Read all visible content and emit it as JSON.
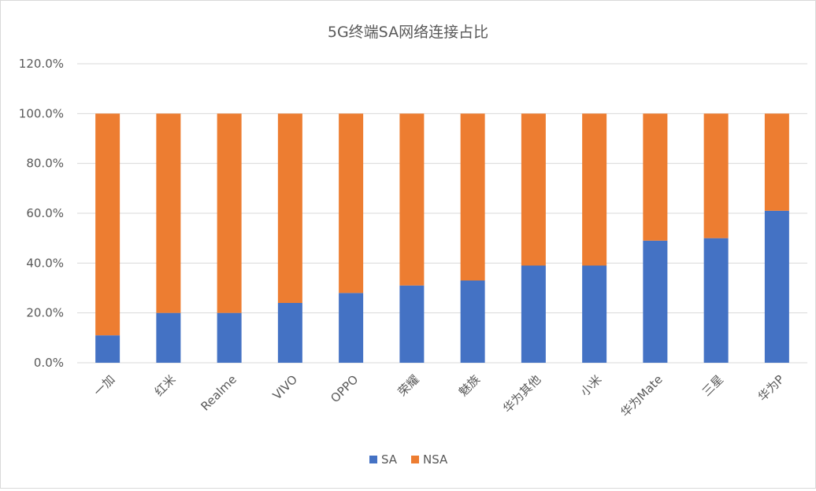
{
  "chart_data": {
    "type": "bar",
    "stacked": true,
    "title": "5G终端SA网络连接占比",
    "xlabel": "",
    "ylabel": "",
    "ylim": [
      0,
      120
    ],
    "yticks": [
      0,
      20,
      40,
      60,
      80,
      100,
      120
    ],
    "ytick_labels": [
      "0.0%",
      "20.0%",
      "40.0%",
      "60.0%",
      "80.0%",
      "100.0%",
      "120.0%"
    ],
    "grid": true,
    "legend_position": "bottom",
    "categories": [
      "一加",
      "红米",
      "Realme",
      "VIVO",
      "OPPO",
      "荣耀",
      "魅族",
      "华为其他",
      "小米",
      "华为Mate",
      "三星",
      "华为P"
    ],
    "series": [
      {
        "name": "SA",
        "color": "#4472c4",
        "values": [
          11,
          20,
          20,
          24,
          28,
          31,
          33,
          39,
          39,
          49,
          50,
          61
        ]
      },
      {
        "name": "NSA",
        "color": "#ed7d31",
        "values": [
          89,
          80,
          80,
          76,
          72,
          69,
          67,
          61,
          61,
          51,
          50,
          39
        ]
      }
    ]
  }
}
